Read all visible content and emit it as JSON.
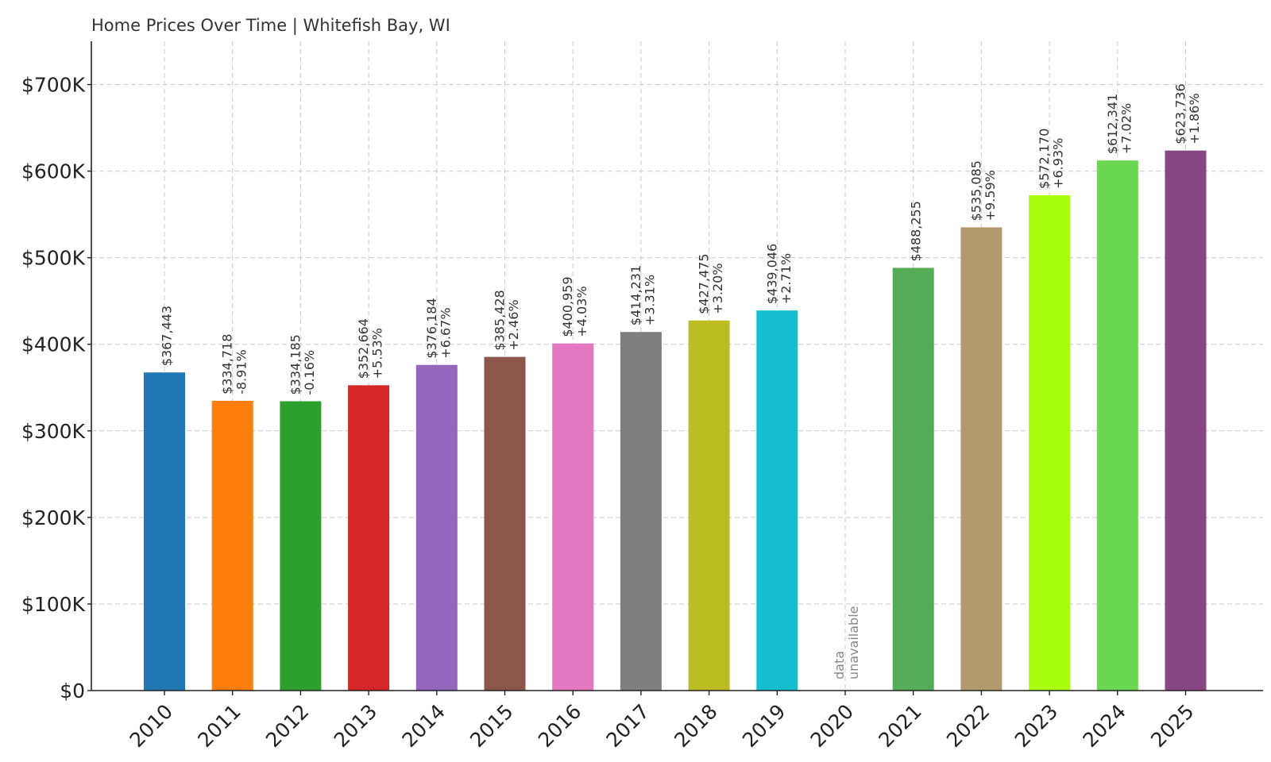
{
  "chart_data": {
    "type": "bar",
    "title": "Home Prices Over Time | Whitefish Bay, WI",
    "xlabel": "",
    "ylabel": "",
    "ylim": [
      0,
      750000
    ],
    "grid": true,
    "y_ticks": [
      {
        "value": 0,
        "label": "$0"
      },
      {
        "value": 100000,
        "label": "$100K"
      },
      {
        "value": 200000,
        "label": "$200K"
      },
      {
        "value": 300000,
        "label": "$300K"
      },
      {
        "value": 400000,
        "label": "$400K"
      },
      {
        "value": 500000,
        "label": "$500K"
      },
      {
        "value": 600000,
        "label": "$600K"
      },
      {
        "value": 700000,
        "label": "$700K"
      }
    ],
    "bars": [
      {
        "year": "2010",
        "value": 367443,
        "price_label": "$367,443",
        "change_label": "",
        "color": "#1f77b4"
      },
      {
        "year": "2011",
        "value": 334718,
        "price_label": "$334,718",
        "change_label": "-8.91%",
        "color": "#ff7f0e"
      },
      {
        "year": "2012",
        "value": 334185,
        "price_label": "$334,185",
        "change_label": "-0.16%",
        "color": "#2ca02c"
      },
      {
        "year": "2013",
        "value": 352664,
        "price_label": "$352,664",
        "change_label": "+5.53%",
        "color": "#d62728"
      },
      {
        "year": "2014",
        "value": 376184,
        "price_label": "$376,184",
        "change_label": "+6.67%",
        "color": "#9467bd"
      },
      {
        "year": "2015",
        "value": 385428,
        "price_label": "$385,428",
        "change_label": "+2.46%",
        "color": "#8c564b"
      },
      {
        "year": "2016",
        "value": 400959,
        "price_label": "$400,959",
        "change_label": "+4.03%",
        "color": "#e377c2"
      },
      {
        "year": "2017",
        "value": 414231,
        "price_label": "$414,231",
        "change_label": "+3.31%",
        "color": "#7f7f7f"
      },
      {
        "year": "2018",
        "value": 427475,
        "price_label": "$427,475",
        "change_label": "+3.20%",
        "color": "#bcbd22"
      },
      {
        "year": "2019",
        "value": 439046,
        "price_label": "$439,046",
        "change_label": "+2.71%",
        "color": "#17becf"
      },
      {
        "year": "2020",
        "value": null,
        "price_label": "",
        "change_label": "",
        "color": "#ffffff"
      },
      {
        "year": "2021",
        "value": 488255,
        "price_label": "$488,255",
        "change_label": "",
        "color": "#55ac57"
      },
      {
        "year": "2022",
        "value": 535085,
        "price_label": "$535,085",
        "change_label": "+9.59%",
        "color": "#b39a6e"
      },
      {
        "year": "2023",
        "value": 572170,
        "price_label": "$572,170",
        "change_label": "+6.93%",
        "color": "#aaff0e"
      },
      {
        "year": "2024",
        "value": 612341,
        "price_label": "$612,341",
        "change_label": "+7.02%",
        "color": "#6bd851"
      },
      {
        "year": "2025",
        "value": 623736,
        "price_label": "$623,736",
        "change_label": "+1.86%",
        "color": "#884684"
      }
    ],
    "missing_note": {
      "year": "2020",
      "line1": "data",
      "line2": "unavailable"
    }
  }
}
